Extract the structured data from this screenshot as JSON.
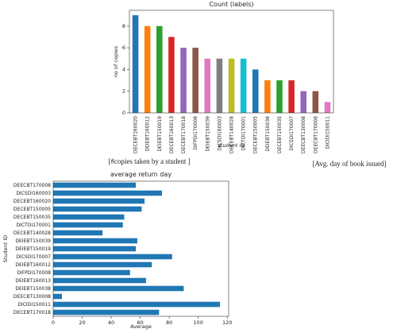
{
  "captions": {
    "left": "[#copies taken by a student          ]",
    "right": "[Avg. day of book issued]"
  },
  "chart_data": [
    {
      "type": "bar",
      "title": "Count (labels)",
      "x_label": "student ID",
      "y_label": "no of copies",
      "categories": [
        "DECEBT160020",
        "DEIEBT160012",
        "DEIEBT150019",
        "DECEBT160013",
        "DECEBT170018",
        "DIFPDI170008",
        "DEIEBT150039",
        "DICSDI160003",
        "DECEBT140028",
        "DICTDI170001",
        "DECEBT150005",
        "DEIEBT150038",
        "DECEBT150035",
        "DICSDI170007",
        "DEECBT130008",
        "DEECBT170008",
        "DICIDI150011"
      ],
      "values": [
        9,
        8,
        8,
        7,
        6,
        6,
        5,
        5,
        5,
        5,
        4,
        3,
        3,
        3,
        2,
        2,
        1
      ],
      "colors": [
        "#1f77b4",
        "#ff7f0e",
        "#2ca02c",
        "#d62728",
        "#9467bd",
        "#8c564b",
        "#e377c2",
        "#7f7f7f",
        "#bcbd22",
        "#17becf",
        "#1f77b4",
        "#ff7f0e",
        "#2ca02c",
        "#d62728",
        "#9467bd",
        "#8c564b",
        "#e377c2"
      ],
      "ylim": [
        0,
        9.45
      ],
      "yticks": [
        0,
        2,
        4,
        6,
        8
      ]
    },
    {
      "type": "barh",
      "title": "average return day",
      "x_label": "Average",
      "y_label": "Student ID",
      "categories": [
        "DEECBT170008",
        "DICSDI160003",
        "DECEBT160020",
        "DECEBT150005",
        "DECEBT150035",
        "DICTDI170001",
        "DECEBT140028",
        "DEIEBT150039",
        "DEIEBT150019",
        "DICSDI170007",
        "DEIEBT160012",
        "DIFPDI170008",
        "DEIEBT160013",
        "DEIEBT150038",
        "DEECBT130008",
        "DICIDI150011",
        "DECEBT170018"
      ],
      "values": [
        57,
        75,
        63,
        61,
        49,
        48,
        34,
        58,
        57,
        82,
        68,
        53,
        64,
        90,
        6,
        115,
        73
      ],
      "color": "#1f77b4",
      "xlim": [
        0,
        121
      ],
      "xticks": [
        0,
        20,
        40,
        60,
        80,
        100,
        120
      ]
    }
  ]
}
